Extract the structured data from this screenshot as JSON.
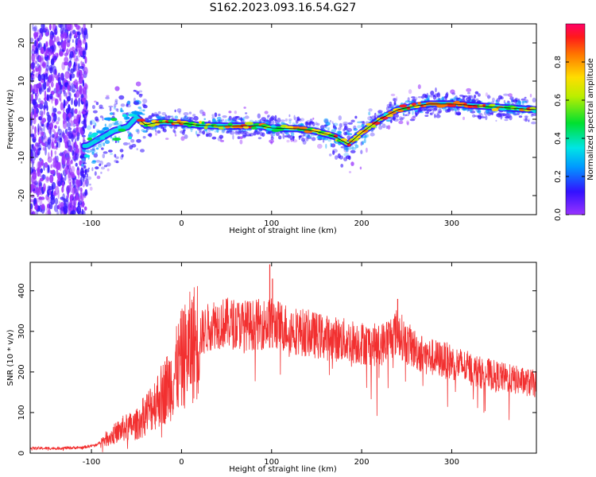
{
  "title": "S162.2023.093.16.54.G27",
  "chart_data": [
    {
      "type": "heatmap",
      "title": "S162.2023.093.16.54.G27",
      "xlabel": "Height of straight line (km)",
      "ylabel": "Frequency (Hz)",
      "xlim": [
        -168,
        394
      ],
      "ylim": [
        -25,
        25
      ],
      "xticks": [
        "-100",
        "0",
        "100",
        "200",
        "300"
      ],
      "yticks": [
        "-20",
        "-10",
        "0",
        "10",
        "20"
      ],
      "colorbar": {
        "label": "Normalized spectral amplitude",
        "range": [
          0,
          1
        ],
        "ticks": [
          "0.0",
          "0.2",
          "0.4",
          "0.6",
          "0.8"
        ]
      },
      "ridge_x": [
        -105,
        -90,
        -75,
        -60,
        -50,
        -40,
        -30,
        -20,
        0,
        20,
        50,
        85,
        100,
        130,
        150,
        170,
        185,
        200,
        220,
        240,
        260,
        275,
        300,
        330,
        360,
        394
      ],
      "ridge_y": [
        -7,
        -5,
        -3,
        -2,
        0.5,
        -1.5,
        -1,
        -0.8,
        -1,
        -1.6,
        -1.8,
        -1.7,
        -2.3,
        -2.5,
        -3.2,
        -4.5,
        -6.5,
        -3.5,
        0,
        2.5,
        3.5,
        4,
        4,
        3.5,
        3,
        2.5
      ],
      "grid": false
    },
    {
      "type": "line",
      "xlabel": "Height of straight line (km)",
      "ylabel": "SNR (10 * v/v)",
      "xlim": [
        -168,
        394
      ],
      "ylim": [
        0,
        470
      ],
      "xticks": [
        "-100",
        "0",
        "100",
        "200",
        "300"
      ],
      "yticks": [
        "0",
        "100",
        "200",
        "300",
        "400"
      ],
      "color": "#f23030",
      "x": [
        -168,
        -140,
        -110,
        -95,
        -80,
        -65,
        -50,
        -35,
        -20,
        -10,
        0,
        10,
        20,
        35,
        50,
        75,
        100,
        130,
        160,
        190,
        220,
        240,
        250,
        270,
        300,
        330,
        360,
        394
      ],
      "values": [
        12,
        12,
        14,
        20,
        40,
        60,
        70,
        110,
        150,
        180,
        230,
        260,
        290,
        320,
        320,
        315,
        320,
        300,
        285,
        275,
        265,
        300,
        270,
        240,
        225,
        200,
        185,
        170
      ],
      "peaks": [
        {
          "x": 98,
          "value": 465
        },
        {
          "x": 101,
          "value": 430
        },
        {
          "x": 240,
          "value": 380
        }
      ],
      "grid": false
    }
  ]
}
